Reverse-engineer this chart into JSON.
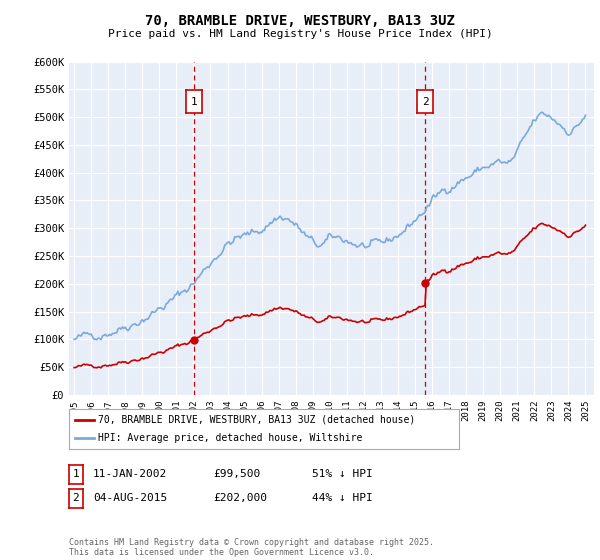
{
  "title": "70, BRAMBLE DRIVE, WESTBURY, BA13 3UZ",
  "subtitle": "Price paid vs. HM Land Registry's House Price Index (HPI)",
  "legend_line1": "70, BRAMBLE DRIVE, WESTBURY, BA13 3UZ (detached house)",
  "legend_line2": "HPI: Average price, detached house, Wiltshire",
  "marker1_date": "11-JAN-2002",
  "marker1_price": "£99,500",
  "marker1_hpi": "51% ↓ HPI",
  "marker1_x": 2002.036,
  "marker1_y": 99500,
  "marker2_date": "04-AUG-2015",
  "marker2_price": "£202,000",
  "marker2_hpi": "44% ↓ HPI",
  "marker2_x": 2015.586,
  "marker2_y": 202000,
  "footer": "Contains HM Land Registry data © Crown copyright and database right 2025.\nThis data is licensed under the Open Government Licence v3.0.",
  "ylim": [
    0,
    600000
  ],
  "yticks": [
    0,
    50000,
    100000,
    150000,
    200000,
    250000,
    300000,
    350000,
    400000,
    450000,
    500000,
    550000,
    600000
  ],
  "xlim": [
    1994.7,
    2025.5
  ],
  "line_color_red": "#cc0000",
  "line_color_blue": "#7aaadd",
  "vline_color": "#cc0000",
  "background_color": "#e8eef8",
  "grid_color": "#ffffff"
}
